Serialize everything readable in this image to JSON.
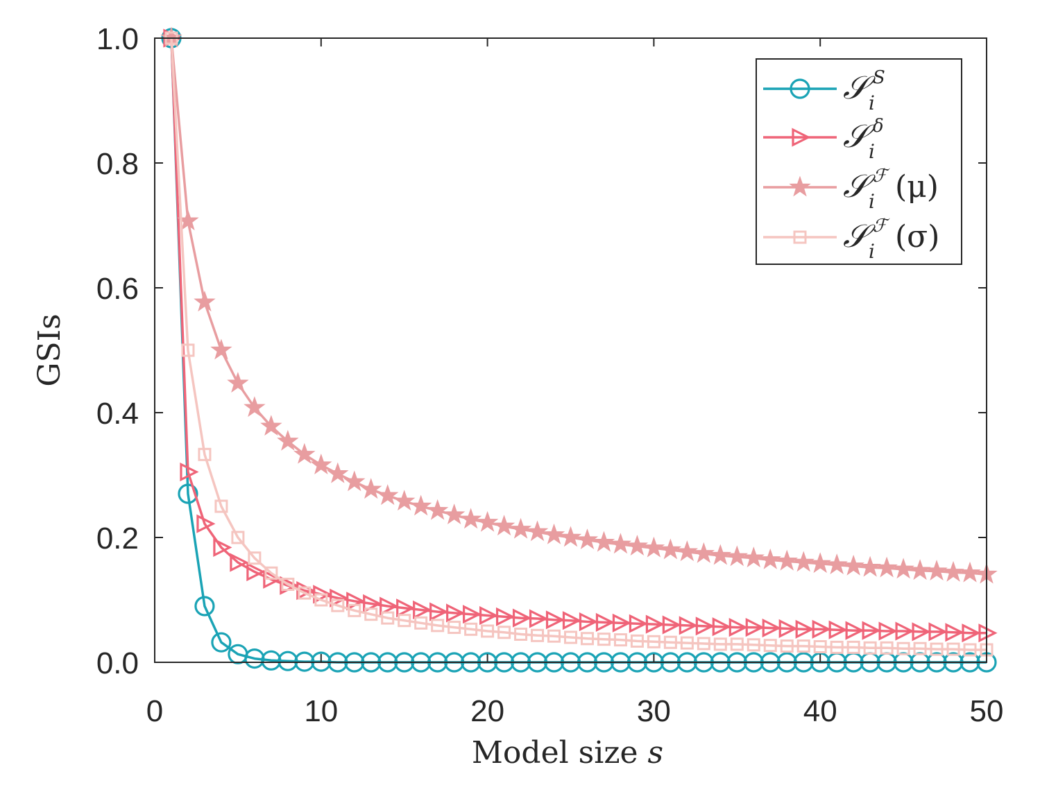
{
  "chart_data": {
    "type": "line",
    "title": "",
    "xlabel": "Model size",
    "xlabel_var": "s",
    "ylabel": "GSIs",
    "xlim": [
      0,
      50
    ],
    "ylim": [
      0,
      1
    ],
    "xticks": [
      "0",
      "10",
      "20",
      "30",
      "40",
      "50"
    ],
    "yticks": [
      "0.0",
      "0.2",
      "0.4",
      "0.6",
      "0.8",
      "1.0"
    ],
    "legend_position": "top-right",
    "x": [
      1,
      2,
      3,
      4,
      5,
      6,
      7,
      8,
      9,
      10,
      11,
      12,
      13,
      14,
      15,
      16,
      17,
      18,
      19,
      20,
      21,
      22,
      23,
      24,
      25,
      26,
      27,
      28,
      29,
      30,
      31,
      32,
      33,
      34,
      35,
      36,
      37,
      38,
      39,
      40,
      41,
      42,
      43,
      44,
      45,
      46,
      47,
      48,
      49,
      50
    ],
    "series": [
      {
        "name": "S_i^S",
        "legend": {
          "sym": "𝒮",
          "sup": "S",
          "sub": "i",
          "arg": ""
        },
        "color": "#1aa3b5",
        "marker": "circle",
        "values": [
          1.0,
          0.27,
          0.09,
          0.032,
          0.013,
          0.006,
          0.003,
          0.002,
          0.001,
          0.001,
          0,
          0,
          0,
          0,
          0,
          0,
          0,
          0,
          0,
          0,
          0,
          0,
          0,
          0,
          0,
          0,
          0,
          0,
          0,
          0,
          0,
          0,
          0,
          0,
          0,
          0,
          0,
          0,
          0,
          0,
          0,
          0,
          0,
          0,
          0,
          0,
          0,
          0,
          0,
          0
        ]
      },
      {
        "name": "S_i^delta",
        "legend": {
          "sym": "𝒮",
          "sup": "δ",
          "sub": "i",
          "arg": ""
        },
        "color": "#ef6478",
        "marker": "triangle-right",
        "values": [
          1.0,
          0.305,
          0.222,
          0.184,
          0.16,
          0.145,
          0.133,
          0.123,
          0.115,
          0.109,
          0.103,
          0.098,
          0.094,
          0.09,
          0.087,
          0.084,
          0.081,
          0.079,
          0.077,
          0.075,
          0.073,
          0.071,
          0.07,
          0.068,
          0.067,
          0.065,
          0.064,
          0.063,
          0.062,
          0.061,
          0.06,
          0.059,
          0.058,
          0.057,
          0.056,
          0.056,
          0.055,
          0.054,
          0.053,
          0.053,
          0.052,
          0.051,
          0.051,
          0.05,
          0.05,
          0.049,
          0.049,
          0.048,
          0.047,
          0.047
        ]
      },
      {
        "name": "S_i^F(mu)",
        "legend": {
          "sym": "𝒮",
          "sup": "ℱ",
          "sub": "i",
          "arg": "(μ)"
        },
        "color": "#e89da0",
        "marker": "star",
        "values": [
          1.0,
          0.707,
          0.577,
          0.5,
          0.447,
          0.408,
          0.378,
          0.354,
          0.333,
          0.316,
          0.302,
          0.289,
          0.277,
          0.267,
          0.258,
          0.25,
          0.243,
          0.236,
          0.229,
          0.224,
          0.218,
          0.213,
          0.209,
          0.204,
          0.2,
          0.196,
          0.192,
          0.189,
          0.186,
          0.183,
          0.18,
          0.177,
          0.174,
          0.171,
          0.169,
          0.167,
          0.164,
          0.162,
          0.16,
          0.158,
          0.156,
          0.154,
          0.152,
          0.151,
          0.149,
          0.147,
          0.146,
          0.144,
          0.143,
          0.141
        ]
      },
      {
        "name": "S_i^F(sigma)",
        "legend": {
          "sym": "𝒮",
          "sup": "ℱ",
          "sub": "i",
          "arg": "(σ)"
        },
        "color": "#f5c5c0",
        "marker": "square",
        "values": [
          1.0,
          0.5,
          0.333,
          0.25,
          0.2,
          0.167,
          0.143,
          0.125,
          0.111,
          0.1,
          0.091,
          0.083,
          0.077,
          0.071,
          0.067,
          0.063,
          0.059,
          0.056,
          0.053,
          0.05,
          0.048,
          0.045,
          0.043,
          0.042,
          0.04,
          0.038,
          0.037,
          0.036,
          0.034,
          0.033,
          0.032,
          0.031,
          0.03,
          0.029,
          0.029,
          0.028,
          0.027,
          0.026,
          0.026,
          0.025,
          0.024,
          0.024,
          0.023,
          0.023,
          0.022,
          0.022,
          0.021,
          0.021,
          0.02,
          0.02
        ]
      }
    ]
  }
}
